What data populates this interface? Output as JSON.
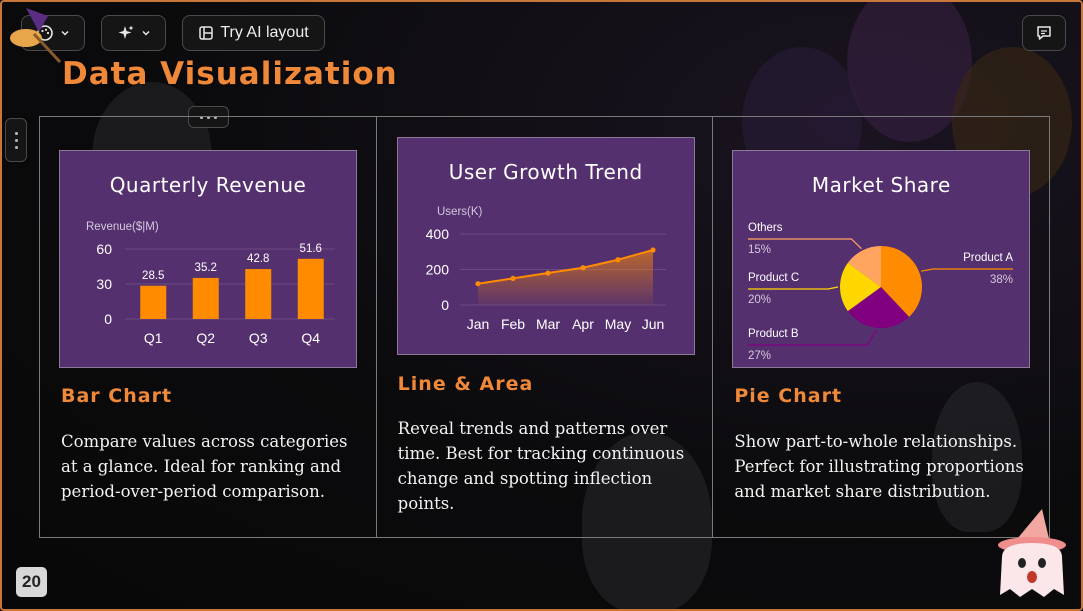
{
  "toolbar": {
    "theme_icon": "palette-icon",
    "ai_icon": "sparkle-icon",
    "ai_layout_label": "Try AI layout",
    "comment_icon": "comment-icon"
  },
  "slide": {
    "title": "Data Visualization",
    "page_number": "20",
    "accent": "#f0883a"
  },
  "cards": [
    {
      "chart_title": "Quarterly Revenue",
      "section_title": "Bar Chart",
      "description": "Compare values across categories at a glance. Ideal for ranking and period-over-period comparison."
    },
    {
      "chart_title": "User Growth Trend",
      "section_title": "Line & Area",
      "description": "Reveal trends and patterns over time. Best for tracking continuous change and spotting inflection points."
    },
    {
      "chart_title": "Market Share",
      "section_title": "Pie Chart",
      "description": "Show part-to-whole relationships. Perfect for illustrating proportions and market share distribution."
    }
  ],
  "chart_data": [
    {
      "type": "bar",
      "title": "Quarterly Revenue",
      "ylabel": "Revenue($|M)",
      "categories": [
        "Q1",
        "Q2",
        "Q3",
        "Q4"
      ],
      "values": [
        28.5,
        35.2,
        42.8,
        51.6
      ],
      "value_labels": [
        "28.5",
        "35.2",
        "42.8",
        "51.6"
      ],
      "yticks": [
        "0",
        "30",
        "60"
      ],
      "ylim": [
        0,
        60
      ],
      "color": "#ff8c00"
    },
    {
      "type": "area",
      "title": "User Growth Trend",
      "ylabel": "Users(K)",
      "categories": [
        "Jan",
        "Feb",
        "Mar",
        "Apr",
        "May",
        "Jun"
      ],
      "values": [
        120,
        150,
        180,
        210,
        255,
        310
      ],
      "yticks": [
        "0",
        "200",
        "400"
      ],
      "ylim": [
        0,
        400
      ],
      "color": "#ff8c00"
    },
    {
      "type": "pie",
      "title": "Market Share",
      "slices": [
        {
          "name": "Product A",
          "pct": "38%",
          "value": 38,
          "color": "#ff8c00"
        },
        {
          "name": "Product B",
          "pct": "27%",
          "value": 27,
          "color": "#800080"
        },
        {
          "name": "Product C",
          "pct": "20%",
          "value": 20,
          "color": "#ffd700"
        },
        {
          "name": "Others",
          "pct": "15%",
          "value": 15,
          "color": "#ffa560"
        }
      ]
    }
  ]
}
